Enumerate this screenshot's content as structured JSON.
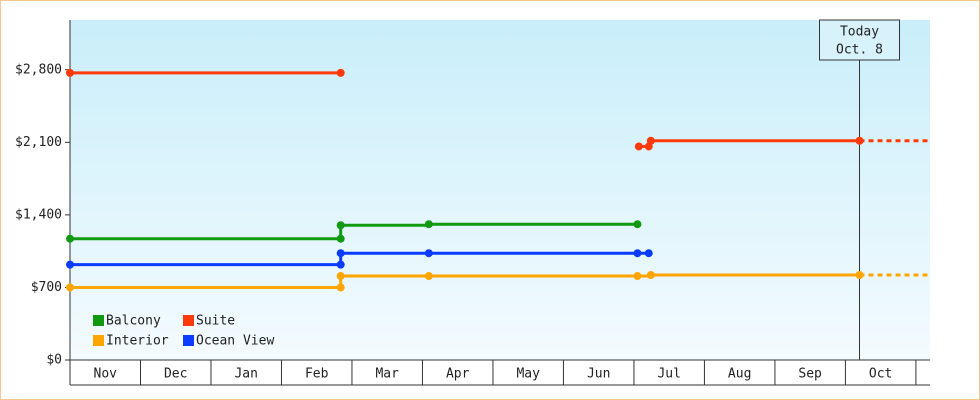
{
  "chart_data": {
    "type": "step-line",
    "categories": [
      "Nov",
      "Dec",
      "Jan",
      "Feb",
      "Mar",
      "Apr",
      "May",
      "Jun",
      "Jul",
      "Aug",
      "Sep",
      "Oct"
    ],
    "xlim": [
      0,
      12.2
    ],
    "ylim": [
      0,
      3280
    ],
    "yticks": [
      {
        "value": 0,
        "label": "$0"
      },
      {
        "value": 700,
        "label": "$700"
      },
      {
        "value": 1400,
        "label": "$1,400"
      },
      {
        "value": 2100,
        "label": "$2,100"
      },
      {
        "value": 2800,
        "label": "$2,800"
      }
    ],
    "today": {
      "x": 11.2,
      "label": [
        "Today",
        "Oct. 8"
      ]
    },
    "series": [
      {
        "name": "Balcony",
        "color": "#119a11",
        "x": [
          0,
          3.84,
          3.84,
          5.09,
          8.05
        ],
        "values": [
          1170,
          1170,
          1300,
          1310,
          1310
        ]
      },
      {
        "name": "Suite",
        "color": "#ff3a0a",
        "x": [
          0,
          3.84,
          3.84,
          8.07,
          8.21,
          8.24,
          11.2
        ],
        "values": [
          2770,
          2770,
          null,
          2060,
          2060,
          2115,
          2115
        ]
      },
      {
        "name": "Interior",
        "color": "#ffa500",
        "x": [
          0,
          3.84,
          3.84,
          5.09,
          8.05,
          8.24,
          11.2
        ],
        "values": [
          700,
          700,
          810,
          810,
          810,
          820,
          820
        ]
      },
      {
        "name": "Ocean View",
        "color": "#0a3cff",
        "x": [
          0,
          3.84,
          3.84,
          5.09,
          8.05,
          8.21
        ],
        "values": [
          920,
          920,
          1030,
          1030,
          1030,
          1030
        ]
      }
    ]
  }
}
